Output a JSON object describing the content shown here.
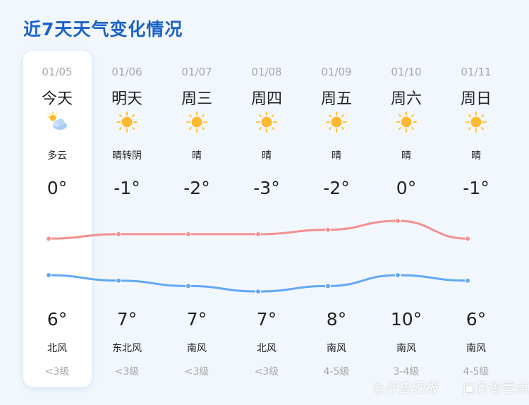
{
  "title": "近7天天气变化情况",
  "colors": {
    "title": "#1b63c6",
    "high_line": "#f58f8f",
    "low_line": "#62a8f5",
    "sun": "#ffb92e"
  },
  "days": [
    {
      "date": "01/05",
      "day": "今天",
      "icon": "partly-cloudy-icon",
      "cond": "多云",
      "top_temp": "0°",
      "bottom_temp": "6°",
      "wind": "北风",
      "level": "<3级"
    },
    {
      "date": "01/06",
      "day": "明天",
      "icon": "sun-icon",
      "cond": "晴转阴",
      "top_temp": "-1°",
      "bottom_temp": "7°",
      "wind": "东北风",
      "level": "<3级"
    },
    {
      "date": "01/07",
      "day": "周三",
      "icon": "sun-icon",
      "cond": "晴",
      "top_temp": "-2°",
      "bottom_temp": "7°",
      "wind": "南风",
      "level": "<3级"
    },
    {
      "date": "01/08",
      "day": "周四",
      "icon": "sun-icon",
      "cond": "晴",
      "top_temp": "-3°",
      "bottom_temp": "7°",
      "wind": "北风",
      "level": "<3级"
    },
    {
      "date": "01/09",
      "day": "周五",
      "icon": "sun-icon",
      "cond": "晴",
      "top_temp": "-2°",
      "bottom_temp": "8°",
      "wind": "南风",
      "level": "4-5级"
    },
    {
      "date": "01/10",
      "day": "周六",
      "icon": "sun-icon",
      "cond": "晴",
      "top_temp": "0°",
      "bottom_temp": "10°",
      "wind": "南风",
      "level": "3-4级"
    },
    {
      "date": "01/11",
      "day": "周日",
      "icon": "sun-icon",
      "cond": "晴",
      "top_temp": "-1°",
      "bottom_temp": "6°",
      "wind": "南风",
      "level": "4-5级"
    }
  ],
  "high_series": [
    6,
    7,
    7,
    7,
    8,
    10,
    6
  ],
  "low_series": [
    0,
    -1,
    -2,
    -3,
    -2,
    0,
    -1
  ],
  "watermark": {
    "left": "齐鲁晚报",
    "right": "齐鲁壹点"
  }
}
